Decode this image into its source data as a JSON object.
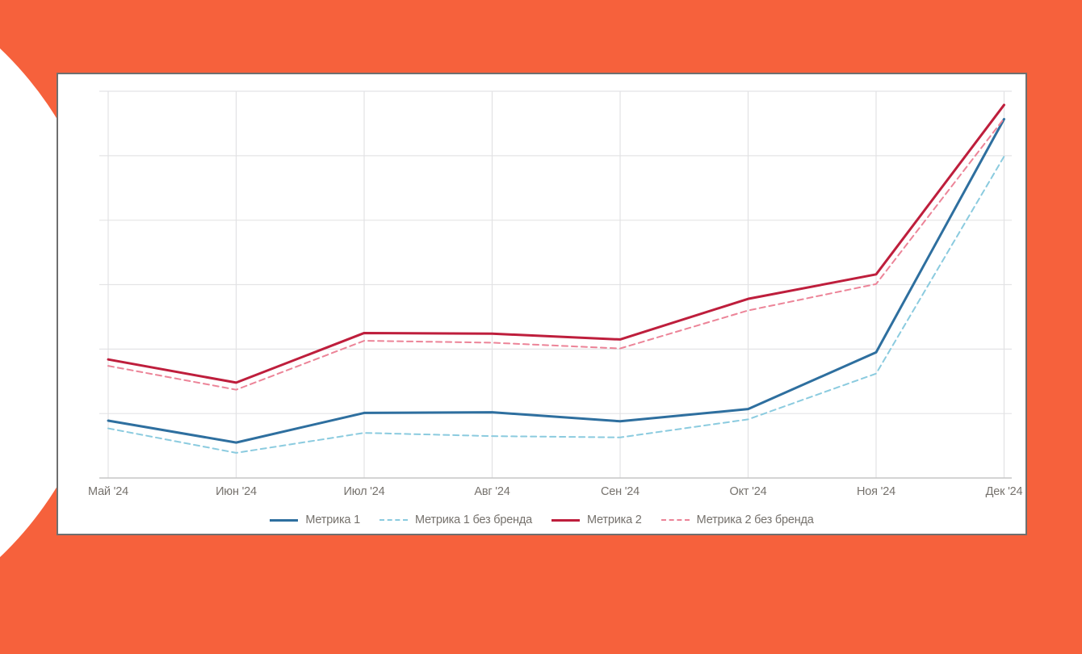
{
  "page": {
    "background_color": "#F6613C",
    "card_background": "#FFFFFF"
  },
  "chart_data": {
    "type": "line",
    "title": "",
    "xlabel": "",
    "ylabel": "",
    "categories": [
      "Май '24",
      "Июн '24",
      "Июл '24",
      "Авг '24",
      "Сен '24",
      "Окт '24",
      "Ноя '24",
      "Дек '24"
    ],
    "series": [
      {
        "name": "Метрика 1",
        "color": "#2E6F9F",
        "line_style": "solid",
        "values": [
          8.9,
          5.5,
          10.1,
          10.2,
          8.8,
          10.7,
          19.5,
          55.7
        ]
      },
      {
        "name": "Метрика 1 без бренда",
        "color": "#8BCBDF",
        "line_style": "dashed",
        "values": [
          7.7,
          3.9,
          7.0,
          6.5,
          6.3,
          9.1,
          16.2,
          49.9
        ]
      },
      {
        "name": "Метрика 2",
        "color": "#BE1E3C",
        "line_style": "solid",
        "values": [
          18.4,
          14.8,
          22.5,
          22.4,
          21.5,
          27.8,
          31.6,
          57.9
        ]
      },
      {
        "name": "Метрика 2 без бренда",
        "color": "#EC8498",
        "line_style": "dashed",
        "values": [
          17.4,
          13.7,
          21.3,
          21.0,
          20.1,
          26.0,
          30.1,
          55.8
        ]
      }
    ],
    "y_axis": {
      "labels_visible": false,
      "gridline_interval": 10,
      "ylim": [
        0,
        62
      ]
    },
    "x_axis": {
      "labels_visible": true
    },
    "grid": true,
    "legend_position": "bottom-center"
  }
}
